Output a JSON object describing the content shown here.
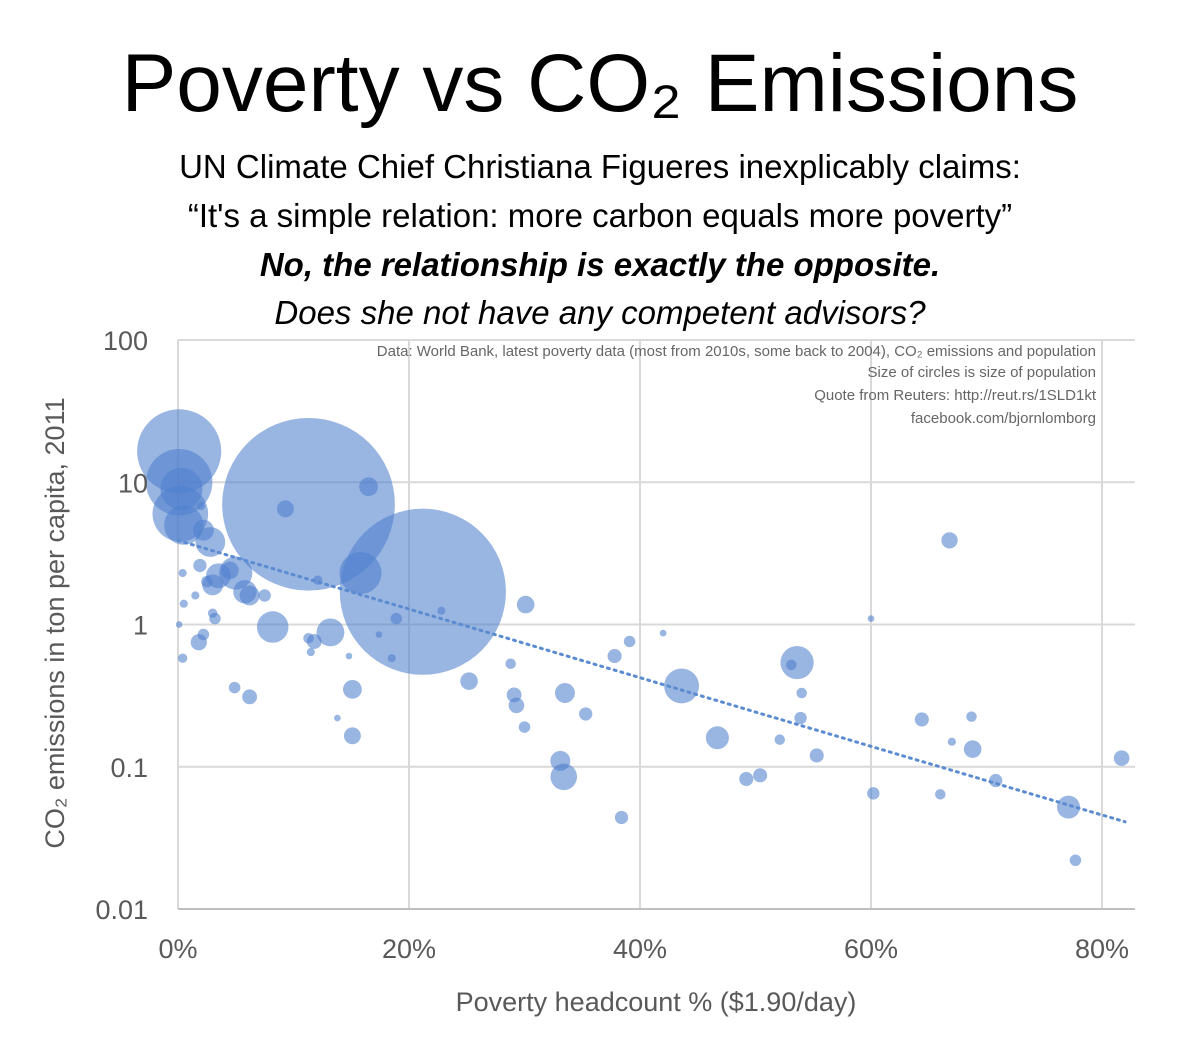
{
  "title": "Poverty vs CO₂ Emissions",
  "subtitle_lines": [
    "UN Climate Chief Christiana Figueres inexplicably claims:",
    "“It's a simple relation: more carbon equals more poverty”",
    "No, the relationship is exactly the opposite.",
    "Does she not have any competent advisors?"
  ],
  "colors": {
    "bubble": "#4f7fcd",
    "trend": "#5b8bd0",
    "grid": "#d9d9d9",
    "axis_text": "#595959"
  },
  "chart_data": {
    "type": "scatter",
    "title": "Poverty vs CO₂ Emissions",
    "xlabel": "Poverty headcount % ($1.90/day)",
    "ylabel": "CO₂ emissions in ton per capita, 2011",
    "x_scale": "linear",
    "y_scale": "log",
    "xlim": [
      0,
      83
    ],
    "ylim": [
      0.01,
      100
    ],
    "x_ticks": [
      {
        "value": 0,
        "label": "0%"
      },
      {
        "value": 20,
        "label": "20%"
      },
      {
        "value": 40,
        "label": "40%"
      },
      {
        "value": 60,
        "label": "60%"
      },
      {
        "value": 80,
        "label": "80%"
      }
    ],
    "y_ticks": [
      {
        "value": 0.01,
        "label": "0.01"
      },
      {
        "value": 0.1,
        "label": "0.1"
      },
      {
        "value": 1,
        "label": "1"
      },
      {
        "value": 10,
        "label": "10"
      },
      {
        "value": 100,
        "label": "100"
      }
    ],
    "grid": true,
    "notes": [
      "Data: World Bank, latest poverty data (most from 2010s, some back to 2004), CO₂ emissions and population",
      "Size of circles is size of population",
      "Quote from Reuters: http://reut.rs/1SLD1kt",
      "facebook.com/bjornlomborg"
    ],
    "bubble_size_meaning": "population",
    "trendline": {
      "style": "dotted",
      "type": "exponential",
      "points": [
        [
          0,
          3.9
        ],
        [
          82,
          0.041
        ]
      ]
    },
    "points": [
      {
        "x": 21.2,
        "y": 1.7,
        "size": 1250
      },
      {
        "x": 11.3,
        "y": 7.0,
        "size": 1350
      },
      {
        "x": 0.1,
        "y": 16.5,
        "size": 320
      },
      {
        "x": 0.1,
        "y": 10.0,
        "size": 200
      },
      {
        "x": 0.2,
        "y": 6.0,
        "size": 140
      },
      {
        "x": 0.5,
        "y": 5.0,
        "size": 70
      },
      {
        "x": 0.3,
        "y": 9.0,
        "size": 80
      },
      {
        "x": 16.5,
        "y": 9.3,
        "size": 16
      },
      {
        "x": 9.3,
        "y": 6.5,
        "size": 13
      },
      {
        "x": 2.0,
        "y": 6.8,
        "size": 3
      },
      {
        "x": 2.2,
        "y": 4.6,
        "size": 20
      },
      {
        "x": 2.8,
        "y": 3.8,
        "size": 40
      },
      {
        "x": 3.5,
        "y": 2.2,
        "size": 28
      },
      {
        "x": 3.0,
        "y": 1.9,
        "size": 20
      },
      {
        "x": 4.5,
        "y": 2.4,
        "size": 14
      },
      {
        "x": 5.0,
        "y": 2.3,
        "size": 50
      },
      {
        "x": 5.8,
        "y": 1.7,
        "size": 25
      },
      {
        "x": 6.2,
        "y": 1.6,
        "size": 18
      },
      {
        "x": 15.8,
        "y": 2.3,
        "size": 80
      },
      {
        "x": 2.5,
        "y": 2.0,
        "size": 6
      },
      {
        "x": 1.9,
        "y": 2.6,
        "size": 8
      },
      {
        "x": 1.5,
        "y": 1.6,
        "size": 3
      },
      {
        "x": 0.4,
        "y": 2.3,
        "size": 3
      },
      {
        "x": 7.5,
        "y": 1.6,
        "size": 7
      },
      {
        "x": 8.2,
        "y": 0.96,
        "size": 45
      },
      {
        "x": 13.2,
        "y": 0.88,
        "size": 35
      },
      {
        "x": 11.3,
        "y": 0.8,
        "size": 5
      },
      {
        "x": 11.8,
        "y": 0.76,
        "size": 10
      },
      {
        "x": 11.5,
        "y": 0.64,
        "size": 3
      },
      {
        "x": 12.1,
        "y": 2.05,
        "size": 4
      },
      {
        "x": 1.8,
        "y": 0.75,
        "size": 12
      },
      {
        "x": 2.2,
        "y": 0.85,
        "size": 6
      },
      {
        "x": 3.0,
        "y": 1.2,
        "size": 4
      },
      {
        "x": 3.2,
        "y": 1.1,
        "size": 6
      },
      {
        "x": 0.4,
        "y": 0.58,
        "size": 4
      },
      {
        "x": 0.5,
        "y": 1.4,
        "size": 3
      },
      {
        "x": 0.1,
        "y": 1.0,
        "size": 2
      },
      {
        "x": 4.9,
        "y": 0.36,
        "size": 6
      },
      {
        "x": 6.2,
        "y": 0.31,
        "size": 10
      },
      {
        "x": 15.1,
        "y": 0.35,
        "size": 16
      },
      {
        "x": 15.1,
        "y": 0.165,
        "size": 13
      },
      {
        "x": 13.8,
        "y": 0.22,
        "size": 2
      },
      {
        "x": 14.8,
        "y": 0.6,
        "size": 2
      },
      {
        "x": 17.4,
        "y": 0.85,
        "size": 2
      },
      {
        "x": 18.9,
        "y": 1.1,
        "size": 6
      },
      {
        "x": 18.5,
        "y": 0.58,
        "size": 3
      },
      {
        "x": 22.8,
        "y": 1.25,
        "size": 3
      },
      {
        "x": 25.2,
        "y": 0.4,
        "size": 14
      },
      {
        "x": 30.1,
        "y": 1.38,
        "size": 14
      },
      {
        "x": 28.8,
        "y": 0.53,
        "size": 5
      },
      {
        "x": 29.1,
        "y": 0.32,
        "size": 10
      },
      {
        "x": 29.3,
        "y": 0.27,
        "size": 11
      },
      {
        "x": 30.0,
        "y": 0.19,
        "size": 6
      },
      {
        "x": 33.5,
        "y": 0.33,
        "size": 18
      },
      {
        "x": 33.1,
        "y": 0.11,
        "size": 18
      },
      {
        "x": 33.4,
        "y": 0.085,
        "size": 32
      },
      {
        "x": 35.3,
        "y": 0.235,
        "size": 8
      },
      {
        "x": 37.8,
        "y": 0.6,
        "size": 9
      },
      {
        "x": 39.1,
        "y": 0.76,
        "size": 6
      },
      {
        "x": 38.4,
        "y": 0.044,
        "size": 8
      },
      {
        "x": 42.0,
        "y": 0.87,
        "size": 2
      },
      {
        "x": 43.6,
        "y": 0.37,
        "size": 55
      },
      {
        "x": 46.7,
        "y": 0.16,
        "size": 24
      },
      {
        "x": 49.2,
        "y": 0.082,
        "size": 9
      },
      {
        "x": 50.4,
        "y": 0.087,
        "size": 9
      },
      {
        "x": 52.1,
        "y": 0.155,
        "size": 5
      },
      {
        "x": 53.6,
        "y": 0.54,
        "size": 50
      },
      {
        "x": 53.1,
        "y": 0.52,
        "size": 5
      },
      {
        "x": 54.0,
        "y": 0.33,
        "size": 5
      },
      {
        "x": 53.9,
        "y": 0.22,
        "size": 7
      },
      {
        "x": 55.3,
        "y": 0.12,
        "size": 9
      },
      {
        "x": 60.0,
        "y": 1.1,
        "size": 2
      },
      {
        "x": 60.2,
        "y": 0.065,
        "size": 7
      },
      {
        "x": 64.4,
        "y": 0.215,
        "size": 9
      },
      {
        "x": 66.0,
        "y": 0.064,
        "size": 5
      },
      {
        "x": 66.8,
        "y": 3.9,
        "size": 12
      },
      {
        "x": 67.0,
        "y": 0.15,
        "size": 3
      },
      {
        "x": 68.7,
        "y": 0.225,
        "size": 5
      },
      {
        "x": 68.8,
        "y": 0.133,
        "size": 14
      },
      {
        "x": 70.8,
        "y": 0.08,
        "size": 8
      },
      {
        "x": 77.1,
        "y": 0.052,
        "size": 24
      },
      {
        "x": 77.7,
        "y": 0.022,
        "size": 6
      },
      {
        "x": 81.7,
        "y": 0.115,
        "size": 11
      }
    ]
  }
}
